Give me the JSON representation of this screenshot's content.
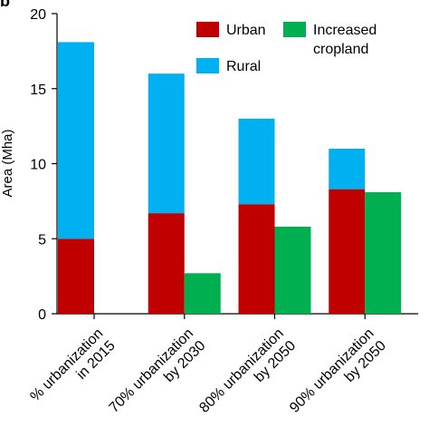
{
  "panel_label": "b",
  "chart_data": {
    "type": "bar",
    "stacked": "partial",
    "title": "",
    "ylabel": "Area (Mha)",
    "xlabel": "",
    "ylim": [
      0,
      20
    ],
    "yticks": [
      "0",
      "5",
      "10",
      "15",
      "20"
    ],
    "categories": [
      [
        "% urbanization",
        "in 2015"
      ],
      [
        "70% urbanization",
        "by 2030"
      ],
      [
        "80% urbanization",
        "by 2050"
      ],
      [
        "90% urbanization",
        "by 2050"
      ]
    ],
    "series": [
      {
        "name": "Urban",
        "color": "#c00000",
        "values": [
          5.0,
          6.7,
          7.3,
          8.3
        ]
      },
      {
        "name": "Rural",
        "color": "#00b0f0",
        "values": [
          13.1,
          9.3,
          5.7,
          2.7
        ]
      },
      {
        "name": "Increased cropland",
        "color": "#00b050",
        "values": [
          null,
          2.7,
          5.8,
          8.1
        ]
      }
    ],
    "legend": {
      "placement": "top-right",
      "entries": [
        {
          "lines": [
            "Urban"
          ],
          "color": "#c00000"
        },
        {
          "lines": [
            "Increased",
            "cropland"
          ],
          "color": "#00b050"
        },
        {
          "lines": [
            "Rural"
          ],
          "color": "#00b0f0"
        }
      ]
    },
    "grid": false
  }
}
